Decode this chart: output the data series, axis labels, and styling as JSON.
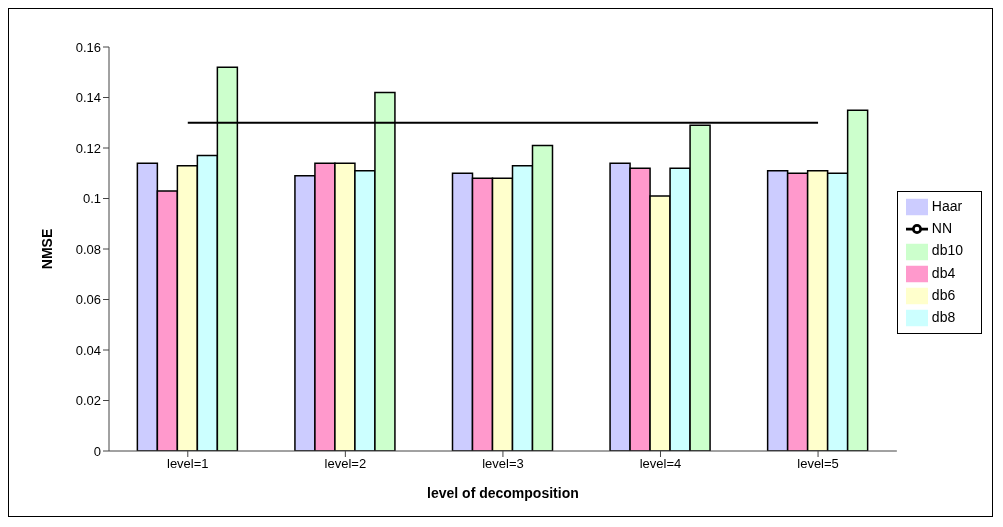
{
  "chart_data": {
    "type": "bar",
    "xlabel": "level of decomposition",
    "ylabel": "NMSE",
    "categories": [
      "level=1",
      "level=2",
      "level=3",
      "level=4",
      "level=5"
    ],
    "series": [
      {
        "name": "Haar",
        "color": "#ccccff",
        "values": [
          0.114,
          0.109,
          0.11,
          0.114,
          0.111
        ]
      },
      {
        "name": "db4",
        "color": "#ff99cc",
        "values": [
          0.103,
          0.114,
          0.108,
          0.112,
          0.11
        ]
      },
      {
        "name": "db6",
        "color": "#ffffcc",
        "values": [
          0.113,
          0.114,
          0.108,
          0.101,
          0.111
        ]
      },
      {
        "name": "db8",
        "color": "#ccffff",
        "values": [
          0.117,
          0.111,
          0.113,
          0.112,
          0.11
        ]
      },
      {
        "name": "db10",
        "color": "#ccffcc",
        "values": [
          0.152,
          0.142,
          0.121,
          0.129,
          0.135
        ]
      },
      {
        "name": "NN",
        "type": "line",
        "color": "#000000",
        "values": [
          0.13,
          0.13,
          0.13,
          0.13,
          0.13
        ]
      }
    ],
    "ylim": [
      0,
      0.16
    ],
    "yticks": [
      0,
      0.02,
      0.04,
      0.06,
      0.08,
      0.1,
      0.12,
      0.14,
      0.16
    ],
    "grid": false,
    "legend": "right",
    "marker": "none"
  }
}
